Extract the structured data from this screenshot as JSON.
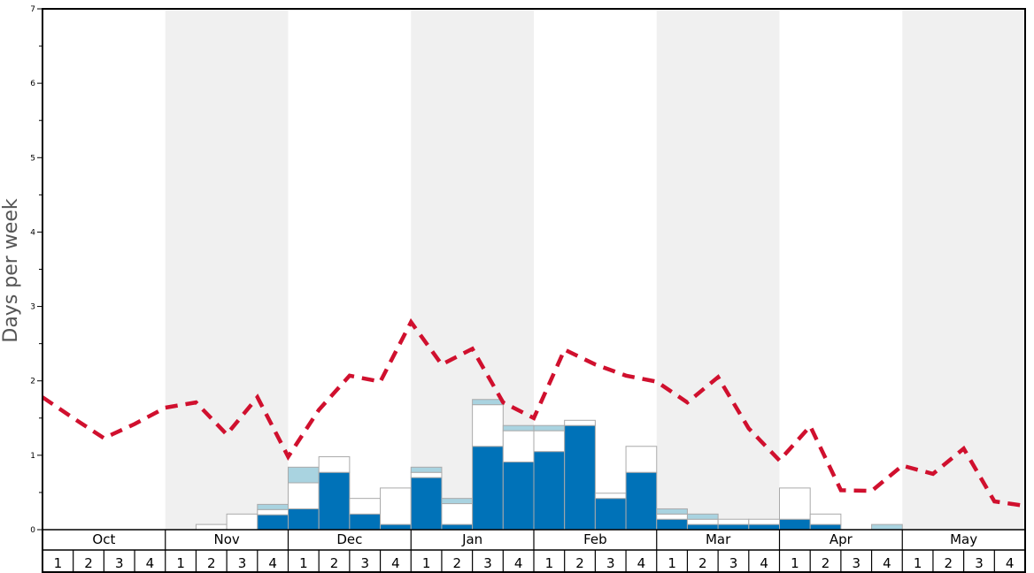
{
  "chart_data": {
    "type": "bar",
    "ylabel": "Days per week",
    "ylim": [
      0,
      7
    ],
    "y_ticks": [
      "0",
      "1",
      "2",
      "3",
      "4",
      "5",
      "6",
      "7"
    ],
    "months": [
      "Oct",
      "Nov",
      "Dec",
      "Jan",
      "Feb",
      "Mar",
      "Apr",
      "May"
    ],
    "weeks": [
      "1",
      "2",
      "3",
      "4"
    ],
    "colors": {
      "dark": "#0072b8",
      "light": "#a9d3e0",
      "white": "#ffffff",
      "line": "#d0102e",
      "shade": "#f0f0f0"
    },
    "series": [
      {
        "values": [
          0,
          0,
          0,
          0,
          0,
          0,
          0,
          0.2,
          0.28,
          0.77,
          0.21,
          0.07,
          0.7,
          0.07,
          1.12,
          0.91,
          1.05,
          1.4,
          0.42,
          0.77,
          0.14,
          0.07,
          0.07,
          0.07,
          0.14,
          0.07,
          0,
          0,
          0,
          0,
          0,
          0
        ]
      },
      {
        "values": [
          0,
          0,
          0,
          0,
          0,
          0.07,
          0.21,
          0.07,
          0.35,
          0.21,
          0.21,
          0.49,
          0.07,
          0.28,
          0.56,
          0.42,
          0.28,
          0.07,
          0.07,
          0.35,
          0.07,
          0.07,
          0.07,
          0.07,
          0.42,
          0.14,
          0,
          0,
          0,
          0,
          0,
          0
        ]
      },
      {
        "values": [
          0,
          0,
          0,
          0,
          0,
          0,
          0,
          0.07,
          0.21,
          0,
          0,
          0,
          0.07,
          0.07,
          0.07,
          0.07,
          0.07,
          0,
          0,
          0,
          0.07,
          0.07,
          0,
          0,
          0,
          0,
          0,
          0.07,
          0,
          0,
          0,
          0
        ]
      },
      {
        "values": [
          1.78,
          1.5,
          1.23,
          1.42,
          1.64,
          1.71,
          1.28,
          1.78,
          0.98,
          1.61,
          2.07,
          1.99,
          2.79,
          2.22,
          2.43,
          1.71,
          1.5,
          2.42,
          2.22,
          2.07,
          1.99,
          1.71,
          2.05,
          1.36,
          0.93,
          1.39,
          0.53,
          0.52,
          0.86,
          0.75,
          1.09,
          0.38
        ]
      }
    ],
    "line_end_value": 0.32
  }
}
